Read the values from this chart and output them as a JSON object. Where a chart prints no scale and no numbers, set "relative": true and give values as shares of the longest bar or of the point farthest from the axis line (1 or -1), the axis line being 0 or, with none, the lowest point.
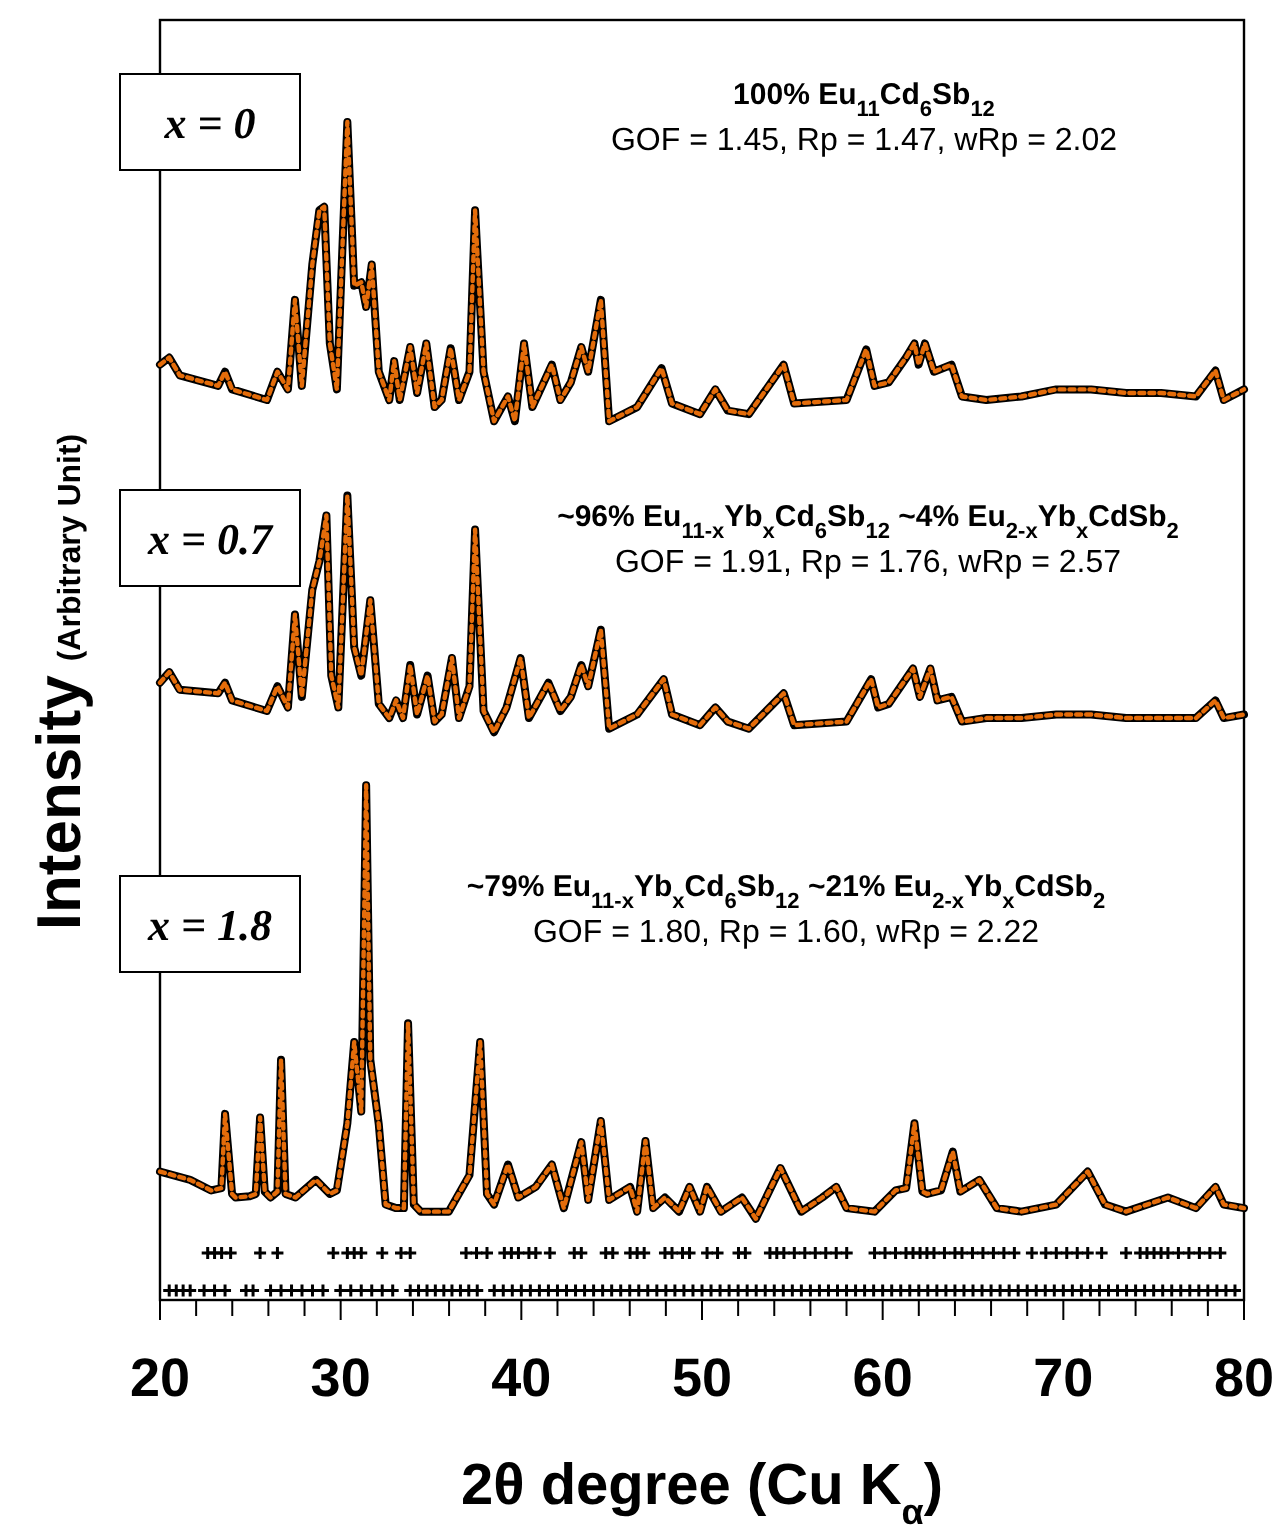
{
  "chart_data": {
    "type": "line",
    "relative": true,
    "xlabel": "2θ degree (Cu K$_{α}$)",
    "ylabel": "Intensity (Arbitrary Unit)",
    "xlim": [
      20,
      80
    ],
    "tick_labels": "x",
    "xticks": [
      20,
      {
        "value": 22,
        "label": null
      },
      {
        "value": 24,
        "label": null
      },
      {
        "value": 26,
        "label": null
      },
      {
        "value": 28,
        "label": null
      },
      30,
      {
        "value": 32,
        "label": null
      },
      {
        "value": 34,
        "label": null
      },
      {
        "value": 36,
        "label": null
      },
      {
        "value": 38,
        "label": null
      },
      40,
      {
        "value": 42,
        "label": null
      },
      {
        "value": 44,
        "label": null
      },
      {
        "value": 46,
        "label": null
      },
      {
        "value": 48,
        "label": null
      },
      50,
      {
        "value": 52,
        "label": null
      },
      {
        "value": 54,
        "label": null
      },
      {
        "value": 56,
        "label": null
      },
      {
        "value": 58,
        "label": null
      },
      60,
      {
        "value": 62,
        "label": null
      },
      {
        "value": 64,
        "label": null
      },
      {
        "value": 66,
        "label": null
      },
      {
        "value": 68,
        "label": null
      },
      70,
      {
        "value": 72,
        "label": null
      },
      {
        "value": 74,
        "label": null
      },
      {
        "value": 76,
        "label": null
      },
      {
        "value": 78,
        "label": null
      },
      80
    ],
    "annotations": [
      "100% Eu$_{11}$Cd$_{6}$Sb$_{12}$",
      "GOF = 1.45, Rp = 1.47, wRp = 2.02",
      "~96% Eu$_{11-x}$Yb$_{x}$Cd$_{6}$Sb$_{12}$ ~4%  Eu$_{2-x}$Yb$_{x}$CdSb$_{2}$",
      "GOF = 1.91, Rp = 1.76, wRp = 2.57",
      "~79% Eu$_{11-x}$Yb$_{x}$Cd$_{6}$Sb$_{12}$ ~21%  Eu$_{2-x}$Yb$_{x}$CdSb$_{2}$",
      "GOF = 1.80, Rp = 1.60, wRp = 2.22"
    ],
    "series": [
      {
        "name": "x = 0",
        "color": "#000000",
        "line_style": "solid",
        "marker": "none",
        "x": [
          20.0,
          20.51,
          21.09,
          23.22,
          23.6,
          23.99,
          25.92,
          26.5,
          27.08,
          27.47,
          27.85,
          28.43,
          28.82,
          29.09,
          29.4,
          29.79,
          30.37,
          30.75,
          31.14,
          31.41,
          31.72,
          32.11,
          32.69,
          32.96,
          33.27,
          33.85,
          34.23,
          34.74,
          35.2,
          35.59,
          36.09,
          36.55,
          37.13,
          37.44,
          37.91,
          38.49,
          39.26,
          39.64,
          40.15,
          40.61,
          41.69,
          42.16,
          42.74,
          43.32,
          43.7,
          44.4,
          44.86,
          46.41,
          47.76,
          48.34,
          49.89,
          50.74,
          51.43,
          52.59,
          54.52,
          55.1,
          58.0,
          59.09,
          59.55,
          60.33,
          61.29,
          61.76,
          61.99,
          62.34,
          62.84,
          63.81,
          64.39,
          65.74,
          67.68,
          69.61,
          71.54,
          73.47,
          75.41,
          77.34,
          78.42,
          78.88,
          80.0
        ],
        "values": [
          0.794,
          0.8,
          0.785,
          0.776,
          0.788,
          0.773,
          0.764,
          0.788,
          0.773,
          0.849,
          0.776,
          0.879,
          0.925,
          0.928,
          0.812,
          0.773,
          1.0,
          0.861,
          0.864,
          0.843,
          0.879,
          0.788,
          0.764,
          0.797,
          0.764,
          0.809,
          0.77,
          0.812,
          0.758,
          0.764,
          0.808,
          0.764,
          0.788,
          0.925,
          0.788,
          0.746,
          0.767,
          0.746,
          0.812,
          0.758,
          0.794,
          0.764,
          0.779,
          0.809,
          0.788,
          0.849,
          0.746,
          0.758,
          0.791,
          0.761,
          0.752,
          0.773,
          0.755,
          0.752,
          0.794,
          0.761,
          0.764,
          0.807,
          0.776,
          0.779,
          0.8,
          0.812,
          0.794,
          0.812,
          0.788,
          0.794,
          0.767,
          0.764,
          0.767,
          0.773,
          0.773,
          0.77,
          0.77,
          0.767,
          0.789,
          0.764,
          0.773
        ]
      },
      {
        "color": "#e46c0a",
        "line_style": "dotted",
        "marker": "none",
        "x": [
          20.0,
          20.51,
          21.09,
          23.22,
          23.6,
          23.99,
          25.92,
          26.5,
          27.08,
          27.47,
          27.85,
          28.43,
          28.82,
          29.09,
          29.4,
          29.79,
          30.37,
          30.75,
          31.14,
          31.41,
          31.72,
          32.11,
          32.69,
          32.96,
          33.27,
          33.85,
          34.23,
          34.74,
          35.2,
          35.59,
          36.09,
          36.55,
          37.13,
          37.44,
          37.91,
          38.49,
          39.26,
          39.64,
          40.15,
          40.61,
          41.69,
          42.16,
          42.74,
          43.32,
          43.7,
          44.4,
          44.86,
          46.41,
          47.76,
          48.34,
          49.89,
          50.74,
          51.43,
          52.59,
          54.52,
          55.1,
          58.0,
          59.09,
          59.55,
          60.33,
          61.29,
          61.76,
          61.99,
          62.34,
          62.84,
          63.81,
          64.39,
          65.74,
          67.68,
          69.61,
          71.54,
          73.47,
          75.41,
          77.34,
          78.42,
          78.88,
          80.0
        ],
        "values": [
          0.794,
          0.8,
          0.785,
          0.776,
          0.788,
          0.773,
          0.764,
          0.788,
          0.773,
          0.849,
          0.776,
          0.879,
          0.925,
          0.928,
          0.812,
          0.773,
          1.0,
          0.861,
          0.864,
          0.843,
          0.879,
          0.788,
          0.764,
          0.797,
          0.764,
          0.809,
          0.77,
          0.812,
          0.758,
          0.764,
          0.808,
          0.764,
          0.788,
          0.925,
          0.788,
          0.746,
          0.767,
          0.746,
          0.812,
          0.758,
          0.794,
          0.764,
          0.779,
          0.809,
          0.788,
          0.849,
          0.746,
          0.758,
          0.791,
          0.761,
          0.752,
          0.773,
          0.755,
          0.752,
          0.794,
          0.761,
          0.764,
          0.807,
          0.776,
          0.779,
          0.8,
          0.812,
          0.794,
          0.812,
          0.788,
          0.794,
          0.767,
          0.764,
          0.767,
          0.773,
          0.773,
          0.77,
          0.77,
          0.767,
          0.789,
          0.764,
          0.773
        ]
      },
      {
        "name": "x = 0.7",
        "color": "#000000",
        "line_style": "solid",
        "marker": "none",
        "x": [
          20.0,
          20.51,
          21.09,
          23.22,
          23.6,
          23.99,
          25.92,
          26.5,
          27.08,
          27.47,
          27.85,
          28.43,
          28.82,
          29.21,
          29.48,
          29.87,
          30.37,
          30.75,
          31.14,
          31.64,
          32.11,
          32.69,
          33.07,
          33.45,
          33.85,
          34.23,
          34.81,
          35.2,
          35.59,
          36.16,
          36.55,
          37.13,
          37.44,
          37.91,
          38.49,
          39.18,
          39.96,
          40.42,
          41.5,
          42.16,
          42.74,
          43.32,
          43.7,
          44.4,
          44.86,
          46.41,
          47.88,
          48.34,
          49.89,
          50.74,
          51.43,
          52.59,
          54.52,
          55.1,
          58.0,
          59.36,
          59.75,
          60.33,
          61.68,
          62.06,
          62.64,
          63.03,
          63.81,
          64.39,
          65.74,
          67.68,
          69.61,
          71.54,
          73.47,
          75.41,
          77.34,
          78.42,
          78.88,
          80.0
        ],
        "values": [
          0.524,
          0.533,
          0.518,
          0.515,
          0.524,
          0.509,
          0.5,
          0.521,
          0.503,
          0.582,
          0.512,
          0.603,
          0.627,
          0.666,
          0.53,
          0.503,
          0.683,
          0.554,
          0.53,
          0.594,
          0.506,
          0.494,
          0.509,
          0.494,
          0.539,
          0.497,
          0.53,
          0.491,
          0.497,
          0.545,
          0.494,
          0.521,
          0.654,
          0.5,
          0.482,
          0.503,
          0.545,
          0.494,
          0.524,
          0.5,
          0.512,
          0.539,
          0.521,
          0.569,
          0.485,
          0.497,
          0.527,
          0.497,
          0.488,
          0.503,
          0.491,
          0.485,
          0.515,
          0.488,
          0.491,
          0.527,
          0.503,
          0.506,
          0.536,
          0.512,
          0.536,
          0.509,
          0.512,
          0.491,
          0.494,
          0.494,
          0.497,
          0.497,
          0.494,
          0.494,
          0.494,
          0.509,
          0.494,
          0.497
        ]
      },
      {
        "color": "#e46c0a",
        "line_style": "dotted",
        "marker": "none",
        "x": [
          20.0,
          20.51,
          21.09,
          23.22,
          23.6,
          23.99,
          25.92,
          26.5,
          27.08,
          27.47,
          27.85,
          28.43,
          28.82,
          29.21,
          29.48,
          29.87,
          30.37,
          30.75,
          31.14,
          31.64,
          32.11,
          32.69,
          33.07,
          33.45,
          33.85,
          34.23,
          34.81,
          35.2,
          35.59,
          36.16,
          36.55,
          37.13,
          37.44,
          37.91,
          38.49,
          39.18,
          39.96,
          40.42,
          41.5,
          42.16,
          42.74,
          43.32,
          43.7,
          44.4,
          44.86,
          46.41,
          47.88,
          48.34,
          49.89,
          50.74,
          51.43,
          52.59,
          54.52,
          55.1,
          58.0,
          59.36,
          59.75,
          60.33,
          61.68,
          62.06,
          62.64,
          63.03,
          63.81,
          64.39,
          65.74,
          67.68,
          69.61,
          71.54,
          73.47,
          75.41,
          77.34,
          78.42,
          78.88,
          80.0
        ],
        "values": [
          0.524,
          0.533,
          0.518,
          0.515,
          0.524,
          0.509,
          0.5,
          0.521,
          0.503,
          0.582,
          0.512,
          0.603,
          0.627,
          0.666,
          0.53,
          0.503,
          0.683,
          0.554,
          0.53,
          0.594,
          0.506,
          0.494,
          0.509,
          0.494,
          0.539,
          0.497,
          0.53,
          0.491,
          0.497,
          0.545,
          0.494,
          0.521,
          0.654,
          0.5,
          0.482,
          0.503,
          0.545,
          0.494,
          0.524,
          0.5,
          0.512,
          0.539,
          0.521,
          0.569,
          0.485,
          0.497,
          0.527,
          0.497,
          0.488,
          0.503,
          0.491,
          0.485,
          0.515,
          0.488,
          0.491,
          0.527,
          0.503,
          0.506,
          0.536,
          0.512,
          0.536,
          0.509,
          0.512,
          0.491,
          0.494,
          0.494,
          0.497,
          0.497,
          0.494,
          0.494,
          0.494,
          0.509,
          0.494,
          0.497
        ]
      },
      {
        "name": "x = 1.8",
        "color": "#000000",
        "line_style": "solid",
        "marker": "none",
        "x": [
          20.0,
          21.67,
          22.83,
          23.4,
          23.6,
          23.99,
          24.18,
          24.96,
          25.3,
          25.54,
          25.8,
          26.12,
          26.5,
          26.7,
          26.95,
          27.5,
          28.63,
          29.4,
          29.79,
          30.37,
          30.75,
          31.14,
          31.41,
          31.64,
          32.11,
          32.49,
          33.07,
          33.5,
          33.73,
          34.05,
          34.43,
          35.98,
          37.13,
          37.72,
          38.1,
          38.49,
          39.26,
          39.83,
          40.8,
          41.69,
          42.35,
          43.32,
          43.7,
          44.4,
          44.86,
          46.02,
          46.41,
          46.87,
          47.3,
          47.95,
          48.73,
          49.31,
          49.89,
          50.28,
          51.05,
          52.21,
          52.98,
          54.34,
          55.5,
          56.66,
          57.43,
          58.0,
          59.55,
          60.71,
          61.3,
          61.76,
          62.2,
          62.46,
          63.23,
          63.88,
          64.3,
          65.35,
          66.32,
          67.68,
          69.61,
          71.35,
          72.31,
          73.47,
          75.79,
          77.34,
          78.42,
          78.88,
          80.0
        ],
        "values": [
          0.109,
          0.102,
          0.093,
          0.095,
          0.158,
          0.09,
          0.087,
          0.088,
          0.09,
          0.155,
          0.092,
          0.087,
          0.092,
          0.204,
          0.09,
          0.087,
          0.102,
          0.09,
          0.093,
          0.15,
          0.219,
          0.16,
          0.437,
          0.204,
          0.149,
          0.081,
          0.078,
          0.078,
          0.235,
          0.081,
          0.075,
          0.075,
          0.106,
          0.219,
          0.09,
          0.081,
          0.115,
          0.087,
          0.096,
          0.115,
          0.078,
          0.134,
          0.085,
          0.152,
          0.085,
          0.096,
          0.075,
          0.135,
          0.078,
          0.087,
          0.075,
          0.096,
          0.075,
          0.096,
          0.075,
          0.087,
          0.069,
          0.112,
          0.075,
          0.087,
          0.096,
          0.078,
          0.075,
          0.093,
          0.095,
          0.15,
          0.092,
          0.09,
          0.093,
          0.126,
          0.092,
          0.102,
          0.078,
          0.075,
          0.081,
          0.109,
          0.081,
          0.075,
          0.087,
          0.078,
          0.096,
          0.081,
          0.078
        ]
      },
      {
        "color": "#e46c0a",
        "line_style": "dotted",
        "marker": "none",
        "x": [
          20.0,
          21.67,
          22.83,
          23.4,
          23.6,
          23.99,
          24.18,
          24.96,
          25.3,
          25.54,
          25.8,
          26.12,
          26.5,
          26.7,
          26.95,
          27.5,
          28.63,
          29.4,
          29.79,
          30.37,
          30.75,
          31.14,
          31.41,
          31.64,
          32.11,
          32.49,
          33.07,
          33.5,
          33.73,
          34.05,
          34.43,
          35.98,
          37.13,
          37.72,
          38.1,
          38.49,
          39.26,
          39.83,
          40.8,
          41.69,
          42.35,
          43.32,
          43.7,
          44.4,
          44.86,
          46.02,
          46.41,
          46.87,
          47.3,
          47.95,
          48.73,
          49.31,
          49.89,
          50.28,
          51.05,
          52.21,
          52.98,
          54.34,
          55.5,
          56.66,
          57.43,
          58.0,
          59.55,
          60.71,
          61.3,
          61.76,
          62.2,
          62.46,
          63.23,
          63.88,
          64.3,
          65.35,
          66.32,
          67.68,
          69.61,
          71.35,
          72.31,
          73.47,
          75.79,
          77.34,
          78.42,
          78.88,
          80.0
        ],
        "values": [
          0.109,
          0.102,
          0.093,
          0.095,
          0.158,
          0.09,
          0.087,
          0.088,
          0.09,
          0.155,
          0.092,
          0.087,
          0.092,
          0.204,
          0.09,
          0.087,
          0.102,
          0.09,
          0.093,
          0.15,
          0.219,
          0.16,
          0.437,
          0.204,
          0.149,
          0.081,
          0.078,
          0.078,
          0.235,
          0.081,
          0.075,
          0.075,
          0.106,
          0.219,
          0.09,
          0.081,
          0.115,
          0.087,
          0.096,
          0.115,
          0.078,
          0.134,
          0.085,
          0.152,
          0.085,
          0.096,
          0.075,
          0.135,
          0.078,
          0.087,
          0.075,
          0.096,
          0.075,
          0.096,
          0.075,
          0.087,
          0.069,
          0.112,
          0.075,
          0.087,
          0.096,
          0.078,
          0.075,
          0.093,
          0.095,
          0.15,
          0.092,
          0.09,
          0.093,
          0.126,
          0.092,
          0.102,
          0.078,
          0.075,
          0.081,
          0.109,
          0.081,
          0.075,
          0.087,
          0.078,
          0.096,
          0.081,
          0.078
        ]
      },
      {
        "type": "scatter",
        "color": "#000000",
        "marker": "cross",
        "x": [
          22.64,
          23.02,
          23.41,
          23.91,
          25.54,
          26.5,
          29.59,
          30.37,
          30.75,
          31.14,
          32.3,
          33.34,
          33.85,
          36.94,
          37.52,
          38.1,
          39.06,
          39.45,
          39.84,
          40.42,
          40.8,
          41.58,
          42.93,
          43.32,
          44.67,
          45.06,
          46.02,
          46.41,
          46.8,
          47.95,
          48.34,
          48.92,
          49.31,
          50.28,
          50.86,
          52.02,
          52.4,
          53.76,
          54.14,
          54.53,
          55.11,
          55.69,
          56.27,
          56.85,
          57.43,
          58.01,
          59.55,
          60.13,
          60.71,
          61.29,
          61.68,
          62.07,
          62.45,
          62.84,
          63.42,
          64.0,
          64.39,
          64.97,
          65.55,
          66.13,
          66.71,
          67.29,
          68.26,
          69.03,
          69.61,
          70.19,
          70.77,
          71.35,
          72.12,
          73.47,
          74.25,
          74.63,
          75.02,
          75.41,
          75.79,
          76.37,
          76.95,
          77.53,
          78.11,
          78.69
        ],
        "values": [
          0.04,
          0.04,
          0.04,
          0.04,
          0.04,
          0.04,
          0.04,
          0.04,
          0.04,
          0.04,
          0.04,
          0.04,
          0.04,
          0.04,
          0.04,
          0.04,
          0.04,
          0.04,
          0.04,
          0.04,
          0.04,
          0.04,
          0.04,
          0.04,
          0.04,
          0.04,
          0.04,
          0.04,
          0.04,
          0.04,
          0.04,
          0.04,
          0.04,
          0.04,
          0.04,
          0.04,
          0.04,
          0.04,
          0.04,
          0.04,
          0.04,
          0.04,
          0.04,
          0.04,
          0.04,
          0.04,
          0.04,
          0.04,
          0.04,
          0.04,
          0.04,
          0.04,
          0.04,
          0.04,
          0.04,
          0.04,
          0.04,
          0.04,
          0.04,
          0.04,
          0.04,
          0.04,
          0.04,
          0.04,
          0.04,
          0.04,
          0.04,
          0.04,
          0.04,
          0.04,
          0.04,
          0.04,
          0.04,
          0.04,
          0.04,
          0.04,
          0.04,
          0.04,
          0.04,
          0.04
        ]
      },
      {
        "type": "scatter",
        "color": "#000000",
        "marker": "cross",
        "x": [
          20.51,
          20.9,
          21.28,
          21.67,
          22.44,
          23.02,
          23.6,
          24.76,
          25.15,
          26.12,
          26.7,
          27.28,
          27.86,
          28.44,
          29.02,
          29.98,
          30.56,
          31.14,
          31.72,
          32.3,
          32.88,
          33.85,
          34.31,
          34.78,
          35.24,
          35.71,
          36.16,
          36.63,
          37.09,
          37.56,
          38.5,
          39.0,
          39.5,
          40.0,
          40.5,
          41.0,
          41.5,
          42.0,
          42.5,
          43.0,
          43.5,
          44.0,
          44.5,
          45.0,
          45.5,
          46.0,
          46.5,
          47.0,
          47.5,
          48.0,
          48.5,
          49.0,
          49.5,
          50.0,
          50.5,
          51.0,
          51.5,
          52.0,
          52.5,
          53.0,
          53.5,
          54.0,
          54.5,
          55.0,
          55.5,
          56.0,
          56.5,
          57.0,
          57.5,
          58.0,
          58.5,
          59.0,
          59.5,
          60.0,
          60.5,
          61.0,
          61.5,
          62.0,
          62.5,
          63.0,
          63.5,
          64.0,
          64.5,
          65.0,
          65.5,
          66.0,
          66.5,
          67.0,
          67.5,
          68.0,
          68.5,
          69.0,
          69.5,
          70.0,
          70.5,
          71.0,
          71.5,
          72.0,
          72.5,
          73.0,
          73.5,
          74.0,
          74.5,
          75.0,
          75.5,
          76.0,
          76.5,
          77.0,
          77.5,
          78.0,
          78.5,
          79.0,
          79.5
        ],
        "values": [
          0.008,
          0.008,
          0.008,
          0.008,
          0.008,
          0.008,
          0.008,
          0.008,
          0.008,
          0.008,
          0.008,
          0.008,
          0.008,
          0.008,
          0.008,
          0.008,
          0.008,
          0.008,
          0.008,
          0.008,
          0.008,
          0.008,
          0.008,
          0.008,
          0.008,
          0.008,
          0.008,
          0.008,
          0.008,
          0.008,
          0.008,
          0.008,
          0.008,
          0.008,
          0.008,
          0.008,
          0.008,
          0.008,
          0.008,
          0.008,
          0.008,
          0.008,
          0.008,
          0.008,
          0.008,
          0.008,
          0.008,
          0.008,
          0.008,
          0.008,
          0.008,
          0.008,
          0.008,
          0.008,
          0.008,
          0.008,
          0.008,
          0.008,
          0.008,
          0.008,
          0.008,
          0.008,
          0.008,
          0.008,
          0.008,
          0.008,
          0.008,
          0.008,
          0.008,
          0.008,
          0.008,
          0.008,
          0.008,
          0.008,
          0.008,
          0.008,
          0.008,
          0.008,
          0.008,
          0.008,
          0.008,
          0.008,
          0.008,
          0.008,
          0.008,
          0.008,
          0.008,
          0.008,
          0.008,
          0.008,
          0.008,
          0.008,
          0.008,
          0.008,
          0.008,
          0.008,
          0.008,
          0.008,
          0.008,
          0.008,
          0.008,
          0.008,
          0.008,
          0.008,
          0.008,
          0.008,
          0.008,
          0.008,
          0.008,
          0.008,
          0.008,
          0.008,
          0.008
        ]
      }
    ]
  }
}
